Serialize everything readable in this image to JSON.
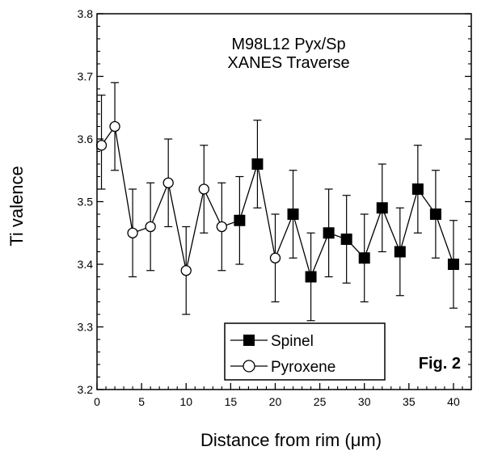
{
  "chart_data": {
    "type": "scatter",
    "title": "",
    "xlabel": "Distance from rim (μm)",
    "ylabel": "Ti valence",
    "xlim": [
      0,
      42
    ],
    "ylim": [
      3.2,
      3.8
    ],
    "xticks": [
      0,
      5,
      10,
      15,
      20,
      25,
      30,
      35,
      40
    ],
    "yticks": [
      3.2,
      3.3,
      3.4,
      3.5,
      3.6,
      3.7,
      3.8
    ],
    "xtick_labels": [
      "0",
      "5",
      "10",
      "15",
      "20",
      "25",
      "30",
      "35",
      "40"
    ],
    "ytick_labels": [
      "3.2",
      "3.3",
      "3.4",
      "3.5",
      "3.6",
      "3.7",
      "3.8"
    ],
    "annotations": [
      "M98L12 Pyx/Sp",
      "XANES Traverse"
    ],
    "fig_label": "Fig. 2",
    "legend": {
      "position": "bottom-center",
      "entries": [
        "Spinel",
        "Pyroxene"
      ]
    },
    "line_order": [
      {
        "x": 0.5,
        "y": 3.59
      },
      {
        "x": 2,
        "y": 3.62
      },
      {
        "x": 4,
        "y": 3.45
      },
      {
        "x": 6,
        "y": 3.46
      },
      {
        "x": 8,
        "y": 3.53
      },
      {
        "x": 10,
        "y": 3.39
      },
      {
        "x": 12,
        "y": 3.52
      },
      {
        "x": 14,
        "y": 3.46
      },
      {
        "x": 16,
        "y": 3.47
      },
      {
        "x": 18,
        "y": 3.56
      },
      {
        "x": 20,
        "y": 3.41
      },
      {
        "x": 22,
        "y": 3.48
      },
      {
        "x": 24,
        "y": 3.38
      },
      {
        "x": 26,
        "y": 3.45
      },
      {
        "x": 28,
        "y": 3.44
      },
      {
        "x": 30,
        "y": 3.41
      },
      {
        "x": 32,
        "y": 3.49
      },
      {
        "x": 34,
        "y": 3.42
      },
      {
        "x": 36,
        "y": 3.52
      },
      {
        "x": 38,
        "y": 3.48
      },
      {
        "x": 40,
        "y": 3.4
      }
    ],
    "series": [
      {
        "name": "Spinel",
        "marker": "filled-square",
        "color": "#000000",
        "points": [
          {
            "x": 16,
            "y": 3.47,
            "ylow": 3.4,
            "yhigh": 3.54
          },
          {
            "x": 18,
            "y": 3.56,
            "ylow": 3.49,
            "yhigh": 3.63
          },
          {
            "x": 22,
            "y": 3.48,
            "ylow": 3.41,
            "yhigh": 3.55
          },
          {
            "x": 24,
            "y": 3.38,
            "ylow": 3.31,
            "yhigh": 3.45
          },
          {
            "x": 26,
            "y": 3.45,
            "ylow": 3.38,
            "yhigh": 3.52
          },
          {
            "x": 28,
            "y": 3.44,
            "ylow": 3.37,
            "yhigh": 3.51
          },
          {
            "x": 30,
            "y": 3.41,
            "ylow": 3.34,
            "yhigh": 3.48
          },
          {
            "x": 32,
            "y": 3.49,
            "ylow": 3.42,
            "yhigh": 3.56
          },
          {
            "x": 34,
            "y": 3.42,
            "ylow": 3.35,
            "yhigh": 3.49
          },
          {
            "x": 36,
            "y": 3.52,
            "ylow": 3.45,
            "yhigh": 3.59
          },
          {
            "x": 38,
            "y": 3.48,
            "ylow": 3.41,
            "yhigh": 3.55
          },
          {
            "x": 40,
            "y": 3.4,
            "ylow": 3.33,
            "yhigh": 3.47
          }
        ]
      },
      {
        "name": "Pyroxene",
        "marker": "open-circle",
        "color": "#000000",
        "points": [
          {
            "x": 0.5,
            "y": 3.59,
            "ylow": 3.52,
            "yhigh": 3.67
          },
          {
            "x": 2,
            "y": 3.62,
            "ylow": 3.55,
            "yhigh": 3.69
          },
          {
            "x": 4,
            "y": 3.45,
            "ylow": 3.38,
            "yhigh": 3.52
          },
          {
            "x": 6,
            "y": 3.46,
            "ylow": 3.39,
            "yhigh": 3.53
          },
          {
            "x": 8,
            "y": 3.53,
            "ylow": 3.46,
            "yhigh": 3.6
          },
          {
            "x": 10,
            "y": 3.39,
            "ylow": 3.32,
            "yhigh": 3.46
          },
          {
            "x": 12,
            "y": 3.52,
            "ylow": 3.45,
            "yhigh": 3.59
          },
          {
            "x": 14,
            "y": 3.46,
            "ylow": 3.39,
            "yhigh": 3.53
          },
          {
            "x": 20,
            "y": 3.41,
            "ylow": 3.34,
            "yhigh": 3.48
          }
        ]
      }
    ]
  }
}
